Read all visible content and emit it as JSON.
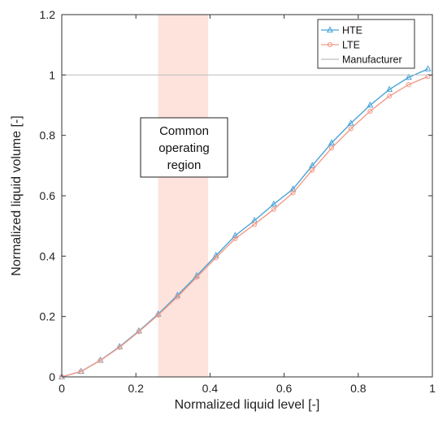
{
  "chart_data": {
    "type": "line",
    "title": "",
    "xlabel": "Normalized liquid level [-]",
    "ylabel": "Normalized liquid volume [-]",
    "xlim": [
      0,
      1
    ],
    "ylim": [
      0,
      1.2
    ],
    "xticks": [
      "0",
      "0.2",
      "0.4",
      "0.6",
      "0.8",
      "1"
    ],
    "yticks": [
      "0",
      "0.2",
      "0.4",
      "0.6",
      "0.8",
      "1",
      "1.2"
    ],
    "grid": false,
    "legend_position": "top-right",
    "shaded_region": {
      "x": [
        0.26,
        0.395
      ],
      "color": "#fde3dc"
    },
    "annotation": {
      "lines": [
        "Common",
        "operating",
        "region"
      ]
    },
    "series": [
      {
        "name": "HTE",
        "color": "#4aa3d8",
        "marker": "triangle",
        "x": [
          0,
          0.052,
          0.104,
          0.156,
          0.208,
          0.26,
          0.312,
          0.364,
          0.416,
          0.468,
          0.52,
          0.572,
          0.624,
          0.676,
          0.728,
          0.78,
          0.832,
          0.884,
          0.936,
          0.988
        ],
        "y": [
          0,
          0.018,
          0.055,
          0.1,
          0.152,
          0.208,
          0.27,
          0.335,
          0.402,
          0.468,
          0.518,
          0.572,
          0.622,
          0.7,
          0.775,
          0.84,
          0.9,
          0.952,
          0.992,
          1.02
        ]
      },
      {
        "name": "LTE",
        "color": "#f29a86",
        "marker": "circle",
        "x": [
          0,
          0.052,
          0.104,
          0.156,
          0.208,
          0.26,
          0.312,
          0.364,
          0.416,
          0.468,
          0.52,
          0.572,
          0.624,
          0.676,
          0.728,
          0.78,
          0.832,
          0.884,
          0.936,
          0.988
        ],
        "y": [
          0,
          0.018,
          0.054,
          0.098,
          0.15,
          0.205,
          0.265,
          0.33,
          0.395,
          0.458,
          0.505,
          0.555,
          0.61,
          0.685,
          0.758,
          0.822,
          0.88,
          0.93,
          0.968,
          0.995
        ]
      },
      {
        "name": "Manufacturer",
        "color": "#bdbdbd",
        "marker": "none",
        "x": [
          0,
          1
        ],
        "y": [
          1,
          1
        ]
      }
    ]
  }
}
